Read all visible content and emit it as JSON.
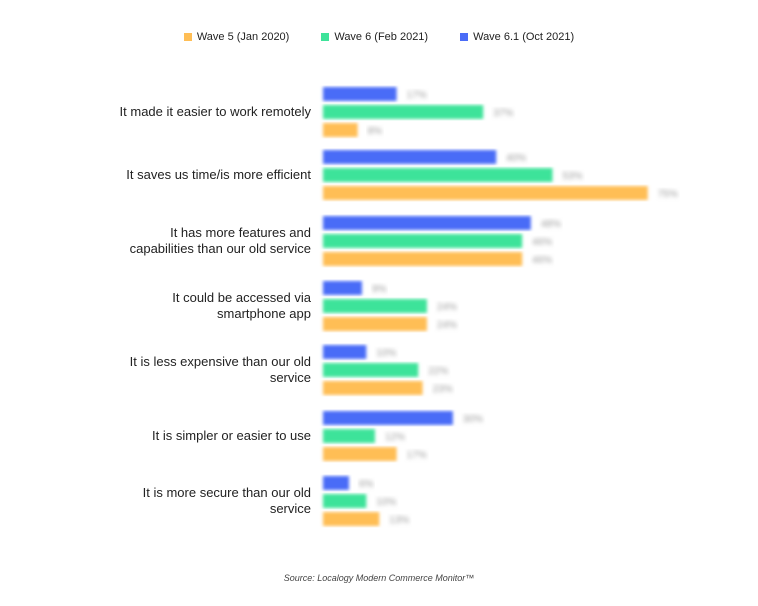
{
  "chart_data": {
    "type": "bar",
    "orientation": "horizontal",
    "categories": [
      "It made it easier to work remotely",
      "It saves us time/is more efficient",
      "It has more features and capabilities than our old service",
      "It could be accessed via smartphone app",
      "It is less expensive than our old service",
      "It is simpler or easier to use",
      "It is more secure than our old service"
    ],
    "series": [
      {
        "name": "Wave 6.1 (Oct 2021)",
        "color": "#4a6cf7",
        "values": [
          17,
          40,
          48,
          9,
          10,
          30,
          6
        ]
      },
      {
        "name": "Wave 6 (Feb 2021)",
        "color": "#3ee39a",
        "values": [
          37,
          53,
          46,
          24,
          22,
          12,
          10
        ]
      },
      {
        "name": "Wave 5 (Jan 2020)",
        "color": "#ffbe55",
        "values": [
          8,
          75,
          46,
          24,
          23,
          17,
          13
        ]
      }
    ],
    "legend_order": [
      "Wave 5 (Jan 2020)",
      "Wave 6 (Feb 2021)",
      "Wave 6.1 (Oct 2021)"
    ],
    "value_unit": "%",
    "xlim": [
      0,
      100
    ],
    "grid": false,
    "legend_position": "top",
    "data_labels_blurred": true
  },
  "source": "Source: Localogy Modern Commerce Monitor™"
}
